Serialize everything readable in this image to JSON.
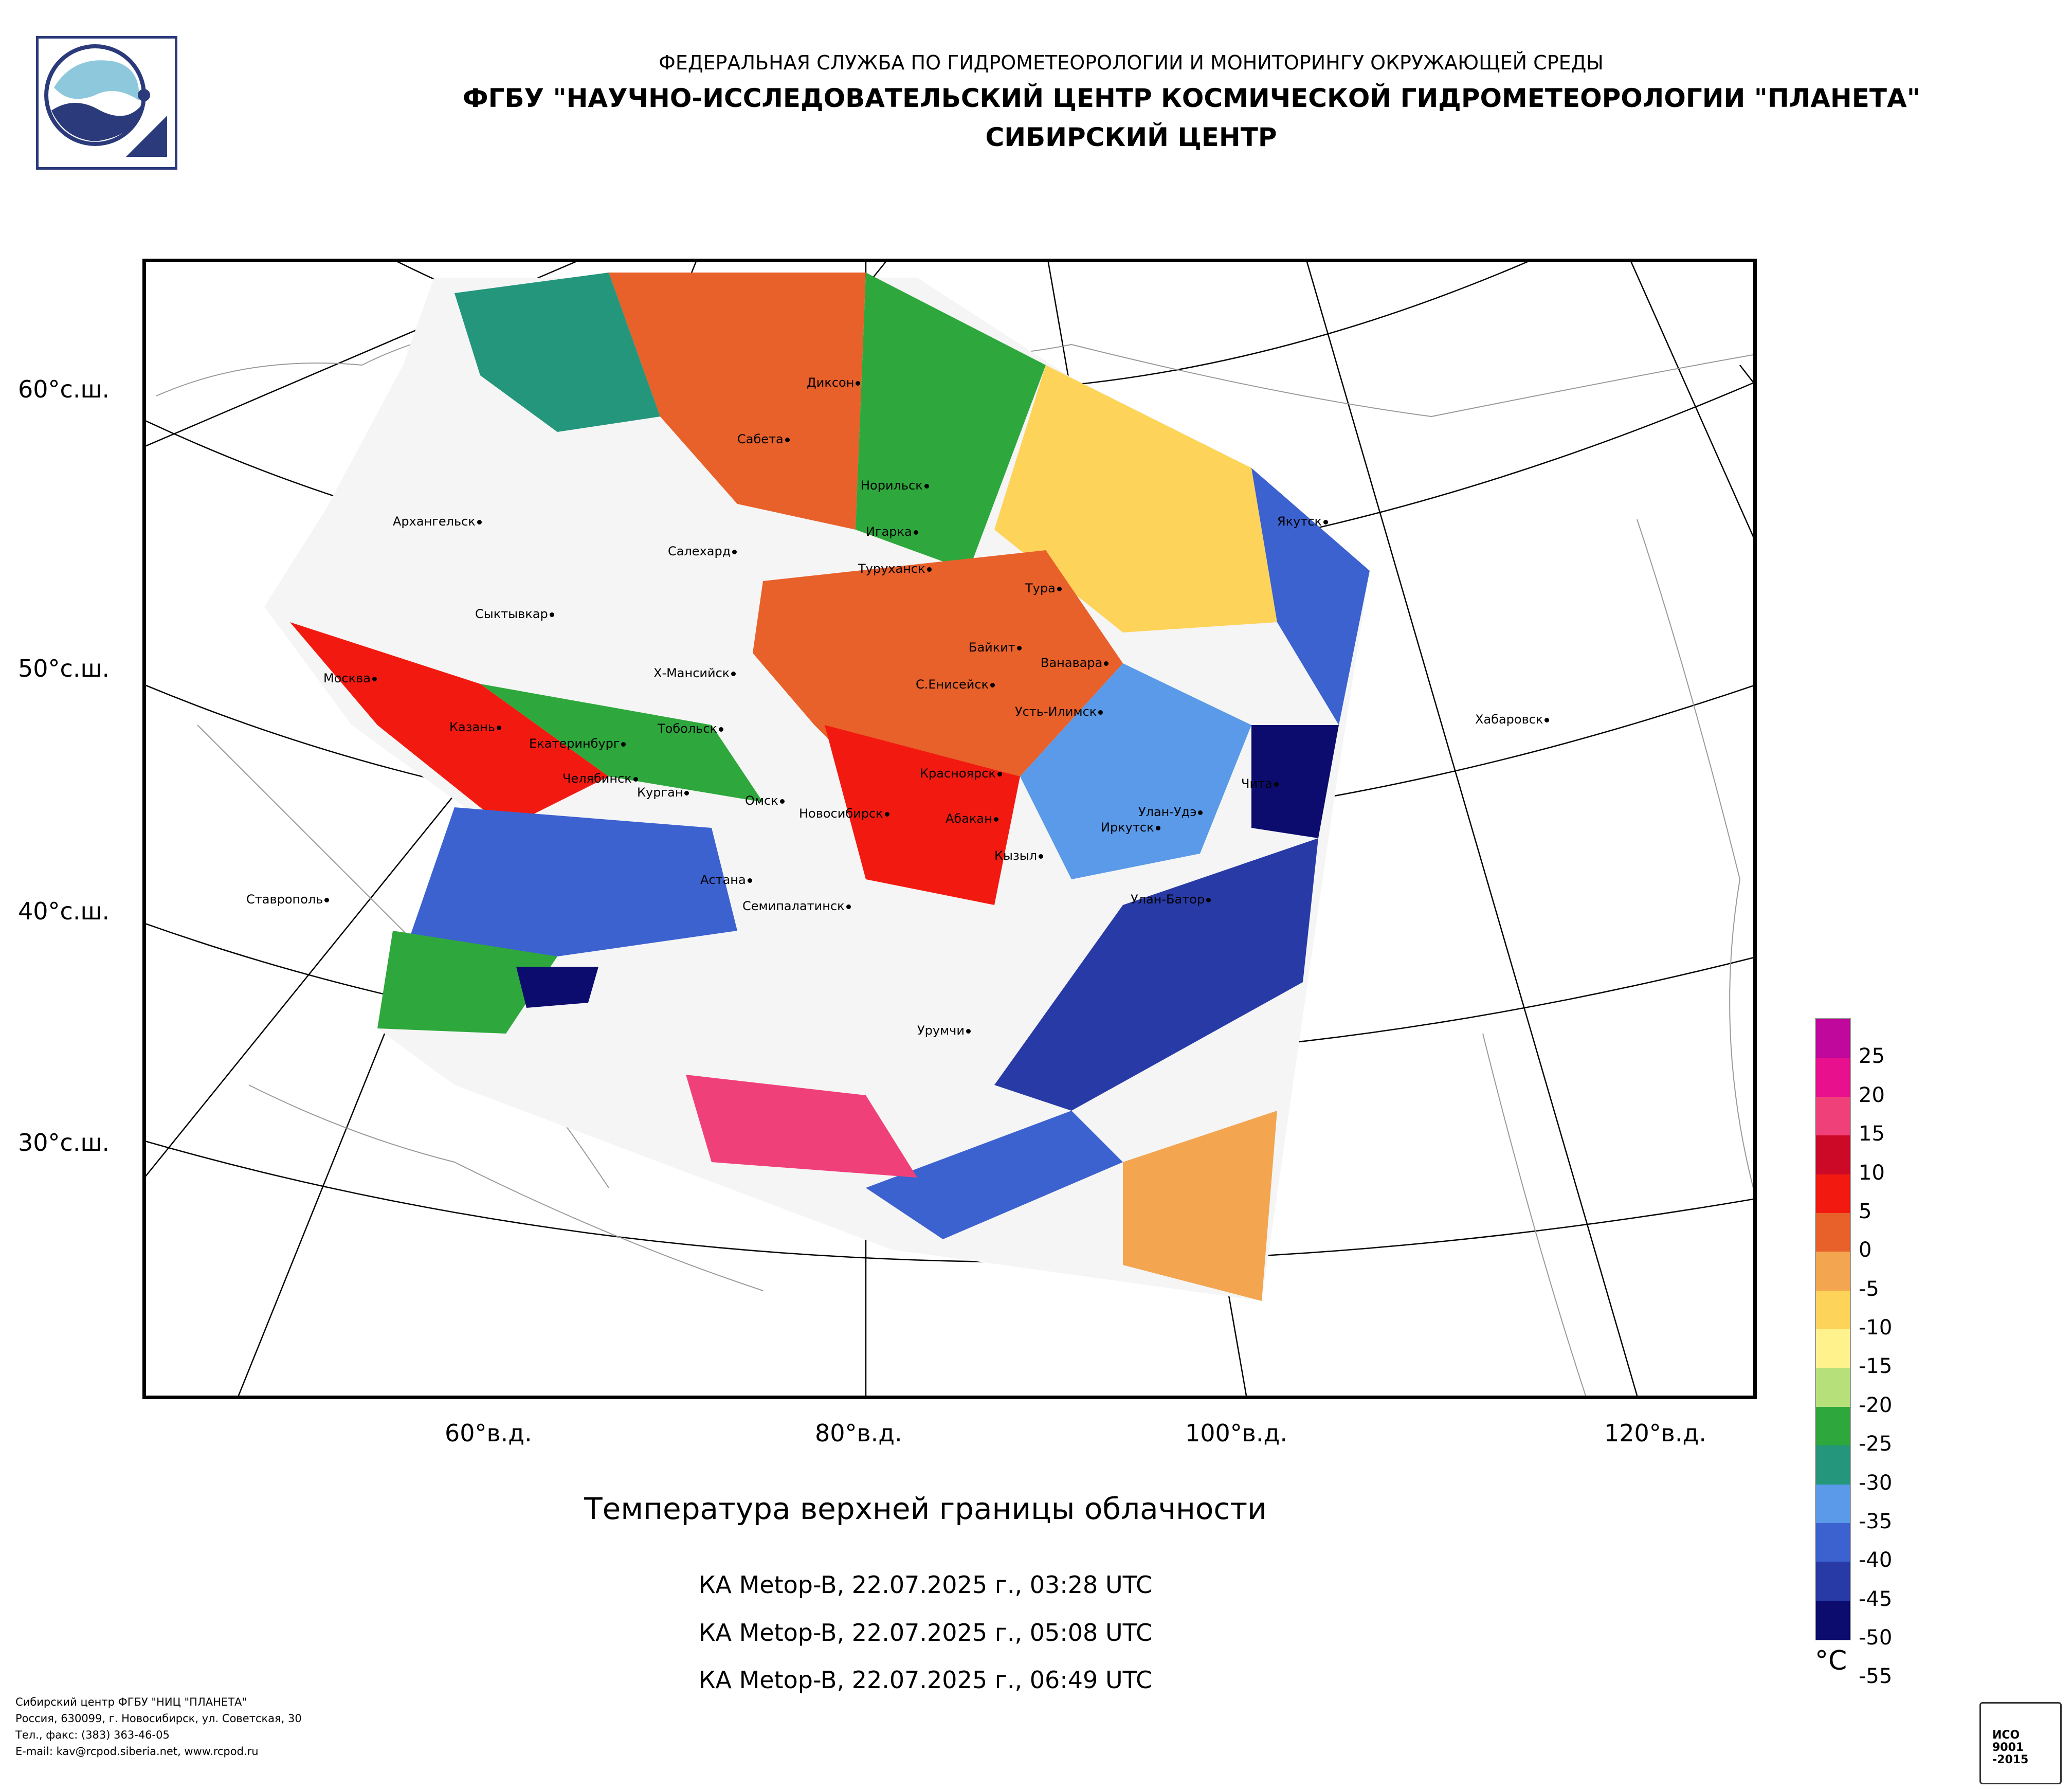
{
  "header": {
    "line1": "ФЕДЕРАЛЬНАЯ СЛУЖБА ПО ГИДРОМЕТЕОРОЛОГИИ И МОНИТОРИНГУ ОКРУЖАЮЩЕЙ СРЕДЫ",
    "line2": "ФГБУ \"НАУЧНО-ИССЛЕДОВАТЕЛЬСКИЙ ЦЕНТР КОСМИЧЕСКОЙ ГИДРОМЕТЕОРОЛОГИИ \"ПЛАНЕТА\"",
    "line3": "СИБИРСКИЙ ЦЕНТР"
  },
  "map": {
    "title": "Температура верхней границы облачности",
    "passes": [
      "КА Metop-B, 22.07.2025 г., 03:28 UTC",
      "КА Metop-B, 22.07.2025 г., 05:08 UTC",
      "КА Metop-B, 22.07.2025 г., 06:49 UTC"
    ],
    "lat_labels": [
      "60°с.ш.",
      "50°с.ш.",
      "40°с.ш.",
      "30°с.ш."
    ],
    "lon_labels": [
      "60°в.д.",
      "80°в.д.",
      "100°в.д.",
      "120°в.д."
    ],
    "cities": [
      "Диксон",
      "Сабета",
      "Норильск",
      "Игарка",
      "Архангельск",
      "Салехард",
      "Туруханск",
      "Тура",
      "Якутск",
      "Сыктывкар",
      "Байкит",
      "Ванавара",
      "Х-Мансийск",
      "С.Енисейск",
      "Москва",
      "Усть-Илимск",
      "Хабаровск",
      "Казань",
      "Тобольск",
      "Екатеринбург",
      "Красноярск",
      "Чита",
      "Челябинск",
      "Курган",
      "Омск",
      "Новосибирск",
      "Абакан",
      "Улан-Удэ",
      "Иркутск",
      "Кызыл",
      "Астана",
      "Улан-Батор",
      "Ставрополь",
      "Семипалатинск",
      "Урумчи"
    ]
  },
  "legend": {
    "unit": "°C",
    "labels": [
      "25",
      "20",
      "15",
      "10",
      "5",
      "0",
      "-5",
      "-10",
      "-15",
      "-20",
      "-25",
      "-30",
      "-35",
      "-40",
      "-45",
      "-50",
      "-55"
    ],
    "colors": [
      "#c0089c",
      "#e8108c",
      "#f0407a",
      "#cc0a28",
      "#f21a10",
      "#e8602a",
      "#f3a550",
      "#fdd35a",
      "#fff28c",
      "#b6e07a",
      "#2ea83c",
      "#23967c",
      "#5a9ae8",
      "#3c62d0",
      "#283aa6",
      "#0c0c6e"
    ]
  },
  "footer": {
    "lines": [
      "Сибирский центр ФГБУ \"НИЦ \"ПЛАНЕТА\"",
      "Россия, 630099, г. Новосибирск, ул. Советская, 30",
      "Тел., факс: (383) 363-46-05",
      "E-mail: kav@rcpod.siberia.net, www.rcpod.ru"
    ],
    "iso_badge": "ИСО 9001 -2015"
  }
}
